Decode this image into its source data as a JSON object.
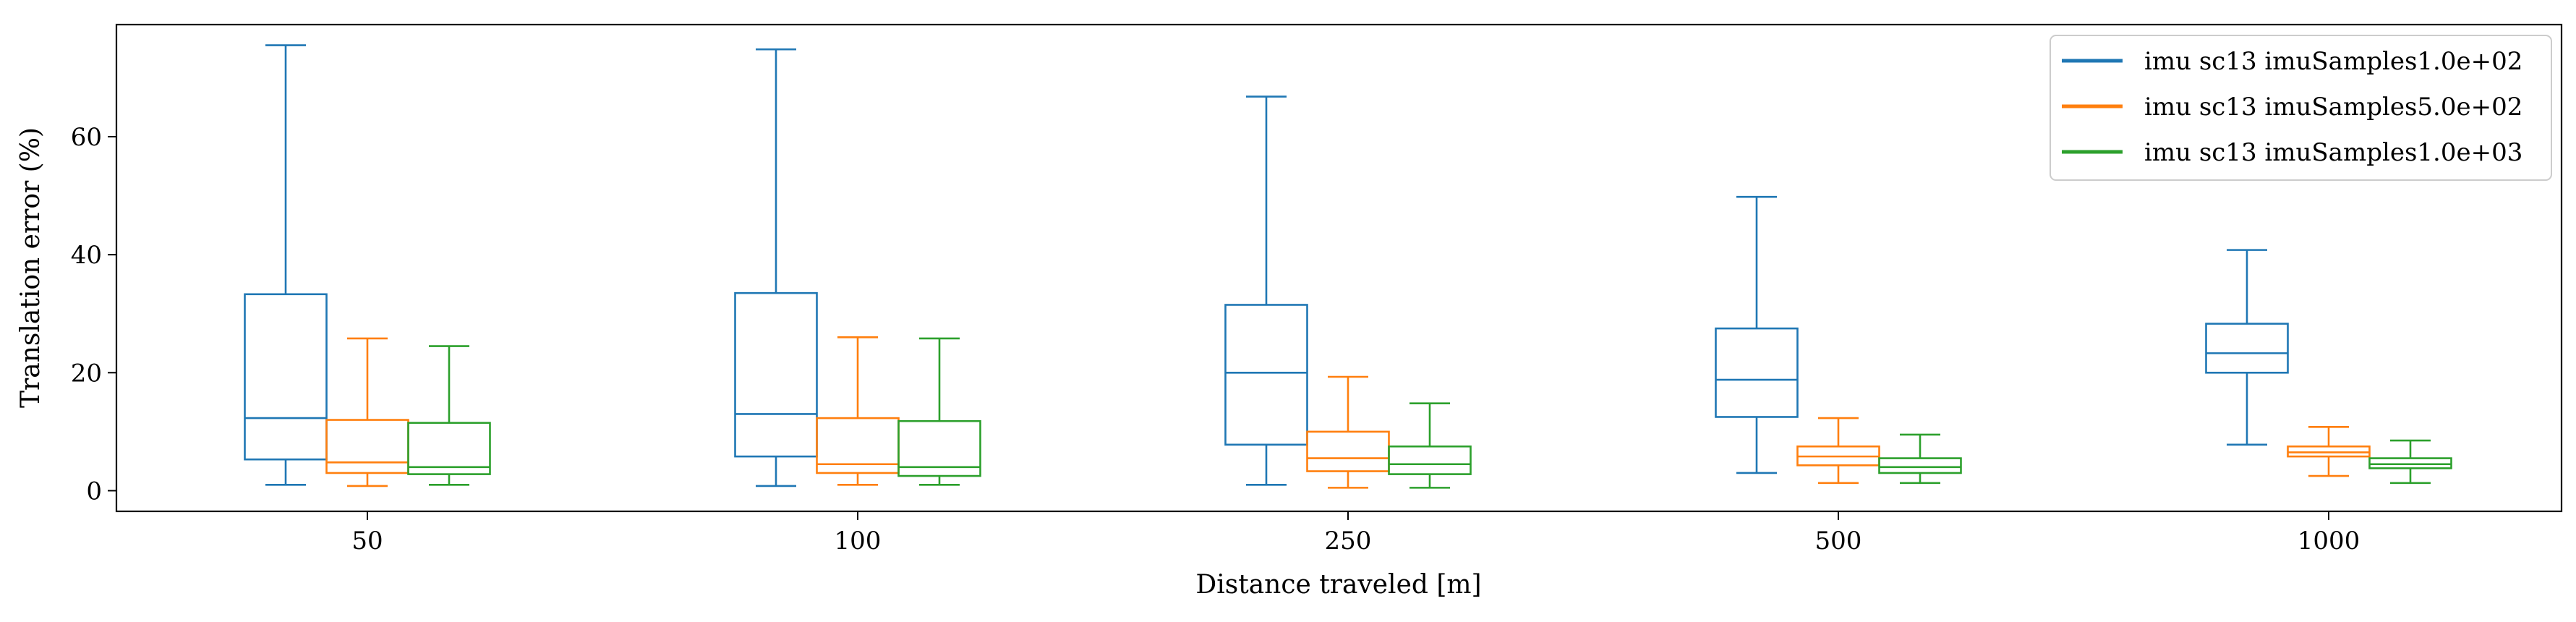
{
  "chart_data": {
    "type": "box",
    "xlabel": "Distance traveled [m]",
    "ylabel": "Translation error (%)",
    "ylim": [
      -3.5,
      79
    ],
    "yticks": [
      0,
      20,
      40,
      60
    ],
    "grid": false,
    "legend_position": "top-right",
    "categories": [
      "50",
      "100",
      "250",
      "500",
      "1000"
    ],
    "series": [
      {
        "name": "imu sc13 imuSamples1.0e+02",
        "color": "#1f77b4",
        "boxes": [
          {
            "whisker_low": 1.0,
            "q1": 5.3,
            "median": 12.3,
            "q3": 33.3,
            "whisker_high": 75.5
          },
          {
            "whisker_low": 0.8,
            "q1": 5.8,
            "median": 13.0,
            "q3": 33.5,
            "whisker_high": 74.8
          },
          {
            "whisker_low": 1.0,
            "q1": 7.8,
            "median": 20.0,
            "q3": 31.5,
            "whisker_high": 66.8
          },
          {
            "whisker_low": 3.0,
            "q1": 12.5,
            "median": 18.8,
            "q3": 27.5,
            "whisker_high": 49.8
          },
          {
            "whisker_low": 7.8,
            "q1": 20.0,
            "median": 23.3,
            "q3": 28.3,
            "whisker_high": 40.8
          }
        ]
      },
      {
        "name": "imu sc13 imuSamples5.0e+02",
        "color": "#ff7f0e",
        "boxes": [
          {
            "whisker_low": 0.8,
            "q1": 3.0,
            "median": 4.8,
            "q3": 12.0,
            "whisker_high": 25.8
          },
          {
            "whisker_low": 1.0,
            "q1": 3.0,
            "median": 4.5,
            "q3": 12.3,
            "whisker_high": 26.0
          },
          {
            "whisker_low": 0.5,
            "q1": 3.3,
            "median": 5.5,
            "q3": 10.0,
            "whisker_high": 19.3
          },
          {
            "whisker_low": 1.3,
            "q1": 4.3,
            "median": 5.8,
            "q3": 7.5,
            "whisker_high": 12.3
          },
          {
            "whisker_low": 2.5,
            "q1": 5.8,
            "median": 6.5,
            "q3": 7.5,
            "whisker_high": 10.8
          }
        ]
      },
      {
        "name": "imu sc13 imuSamples1.0e+03",
        "color": "#2ca02c",
        "boxes": [
          {
            "whisker_low": 1.0,
            "q1": 2.8,
            "median": 4.0,
            "q3": 11.5,
            "whisker_high": 24.5
          },
          {
            "whisker_low": 1.0,
            "q1": 2.5,
            "median": 4.0,
            "q3": 11.8,
            "whisker_high": 25.8
          },
          {
            "whisker_low": 0.5,
            "q1": 2.8,
            "median": 4.5,
            "q3": 7.5,
            "whisker_high": 14.8
          },
          {
            "whisker_low": 1.3,
            "q1": 3.0,
            "median": 4.0,
            "q3": 5.5,
            "whisker_high": 9.5
          },
          {
            "whisker_low": 1.3,
            "q1": 3.8,
            "median": 4.5,
            "q3": 5.5,
            "whisker_high": 8.5
          }
        ]
      }
    ]
  }
}
